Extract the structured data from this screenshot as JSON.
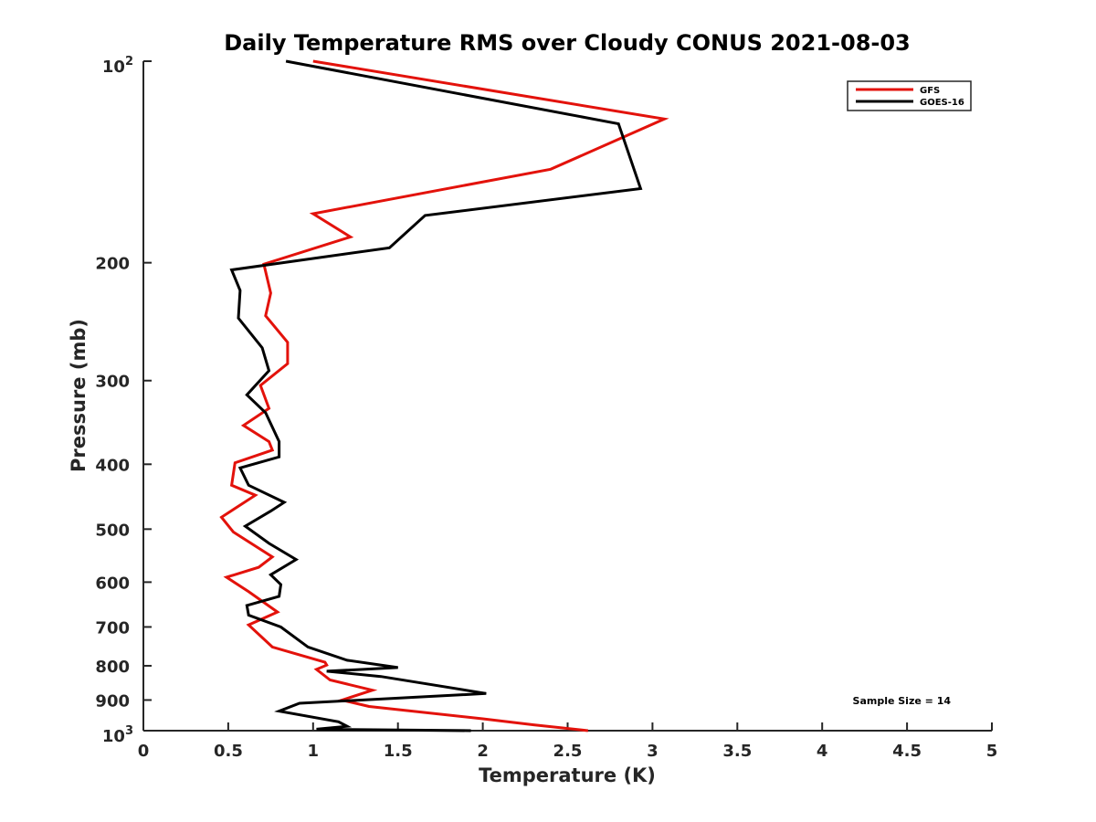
{
  "chart_data": {
    "type": "line",
    "title": "Daily Temperature RMS over Cloudy CONUS 2021-08-03",
    "xlabel": "Temperature (K)",
    "ylabel": "Pressure (mb)",
    "xlim": [
      0,
      5
    ],
    "ylim": [
      100,
      1000
    ],
    "y_scale": "log",
    "y_reversed": true,
    "grid": false,
    "legend_position": "top-right",
    "x_ticks": [
      "0",
      "0.5",
      "1",
      "1.5",
      "2",
      "2.5",
      "3",
      "3.5",
      "4",
      "4.5",
      "5"
    ],
    "y_ticks": [
      {
        "value": 100,
        "label": "10",
        "sup": "2"
      },
      {
        "value": 200,
        "label": "200",
        "sup": ""
      },
      {
        "value": 300,
        "label": "300",
        "sup": ""
      },
      {
        "value": 400,
        "label": "400",
        "sup": ""
      },
      {
        "value": 500,
        "label": "500",
        "sup": ""
      },
      {
        "value": 600,
        "label": "600",
        "sup": ""
      },
      {
        "value": 700,
        "label": "700",
        "sup": ""
      },
      {
        "value": 800,
        "label": "800",
        "sup": ""
      },
      {
        "value": 900,
        "label": "900",
        "sup": ""
      },
      {
        "value": 1000,
        "label": "10",
        "sup": "3"
      }
    ],
    "annotation": "Sample Size = 14",
    "series": [
      {
        "name": "GFS",
        "color": "#e3120b",
        "points": [
          [
            1.0,
            100
          ],
          [
            3.07,
            122
          ],
          [
            2.4,
            145
          ],
          [
            1.0,
            169
          ],
          [
            1.22,
            183
          ],
          [
            0.71,
            201
          ],
          [
            0.75,
            222
          ],
          [
            0.72,
            240
          ],
          [
            0.85,
            263
          ],
          [
            0.85,
            283
          ],
          [
            0.69,
            305
          ],
          [
            0.74,
            330
          ],
          [
            0.59,
            350
          ],
          [
            0.74,
            370
          ],
          [
            0.76,
            381
          ],
          [
            0.54,
            398
          ],
          [
            0.52,
            430
          ],
          [
            0.66,
            445
          ],
          [
            0.46,
            480
          ],
          [
            0.53,
            505
          ],
          [
            0.76,
            550
          ],
          [
            0.68,
            570
          ],
          [
            0.49,
            590
          ],
          [
            0.62,
            620
          ],
          [
            0.79,
            665
          ],
          [
            0.62,
            695
          ],
          [
            0.76,
            750
          ],
          [
            1.07,
            790
          ],
          [
            1.08,
            798
          ],
          [
            1.02,
            810
          ],
          [
            1.1,
            840
          ],
          [
            1.35,
            870
          ],
          [
            1.17,
            900
          ],
          [
            1.33,
            920
          ],
          [
            2.0,
            960
          ],
          [
            2.3,
            980
          ],
          [
            2.62,
            1000
          ]
        ]
      },
      {
        "name": "GOES-16",
        "color": "#000000",
        "points": [
          [
            0.84,
            100
          ],
          [
            2.8,
            124
          ],
          [
            2.93,
            155
          ],
          [
            1.66,
            170
          ],
          [
            1.45,
            190
          ],
          [
            0.52,
            205
          ],
          [
            0.57,
            220
          ],
          [
            0.56,
            242
          ],
          [
            0.7,
            268
          ],
          [
            0.74,
            290
          ],
          [
            0.61,
            315
          ],
          [
            0.72,
            335
          ],
          [
            0.8,
            370
          ],
          [
            0.8,
            390
          ],
          [
            0.57,
            405
          ],
          [
            0.62,
            430
          ],
          [
            0.83,
            456
          ],
          [
            0.75,
            470
          ],
          [
            0.6,
            495
          ],
          [
            0.74,
            525
          ],
          [
            0.9,
            555
          ],
          [
            0.75,
            585
          ],
          [
            0.81,
            605
          ],
          [
            0.8,
            630
          ],
          [
            0.61,
            650
          ],
          [
            0.62,
            672
          ],
          [
            0.81,
            700
          ],
          [
            0.97,
            750
          ],
          [
            1.2,
            785
          ],
          [
            1.5,
            805
          ],
          [
            1.08,
            815
          ],
          [
            1.4,
            830
          ],
          [
            2.02,
            880
          ],
          [
            0.92,
            910
          ],
          [
            0.8,
            935
          ],
          [
            1.15,
            970
          ],
          [
            1.2,
            985
          ],
          [
            1.02,
            995
          ],
          [
            1.93,
            1000
          ]
        ]
      }
    ]
  }
}
